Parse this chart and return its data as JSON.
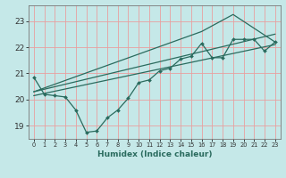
{
  "xlabel": "Humidex (Indice chaleur)",
  "ylabel": "",
  "bg_color": "#c5e8e8",
  "line_color": "#2a6b5e",
  "grid_color": "#e8a0a0",
  "xlim": [
    -0.5,
    23.5
  ],
  "ylim": [
    18.5,
    23.6
  ],
  "xticks": [
    0,
    1,
    2,
    3,
    4,
    5,
    6,
    7,
    8,
    9,
    10,
    11,
    12,
    13,
    14,
    15,
    16,
    17,
    18,
    19,
    20,
    21,
    22,
    23
  ],
  "yticks": [
    19,
    20,
    21,
    22,
    23
  ],
  "line1_x": [
    0,
    1,
    2,
    3,
    4,
    5,
    6,
    7,
    8,
    9,
    10,
    11,
    12,
    13,
    14,
    15,
    16,
    17,
    18,
    19,
    20,
    21,
    22,
    23
  ],
  "line1_y": [
    20.85,
    20.2,
    20.15,
    20.1,
    19.6,
    18.75,
    18.8,
    19.3,
    19.6,
    20.05,
    20.65,
    20.75,
    21.1,
    21.2,
    21.55,
    21.65,
    22.15,
    21.6,
    21.6,
    22.3,
    22.3,
    22.3,
    21.85,
    22.2
  ],
  "line2_x": [
    0,
    23
  ],
  "line2_y": [
    20.15,
    22.1
  ],
  "line3_x": [
    0,
    23
  ],
  "line3_y": [
    20.3,
    22.5
  ],
  "line4_x": [
    0,
    16,
    19,
    23
  ],
  "line4_y": [
    20.3,
    22.6,
    23.25,
    22.2
  ]
}
